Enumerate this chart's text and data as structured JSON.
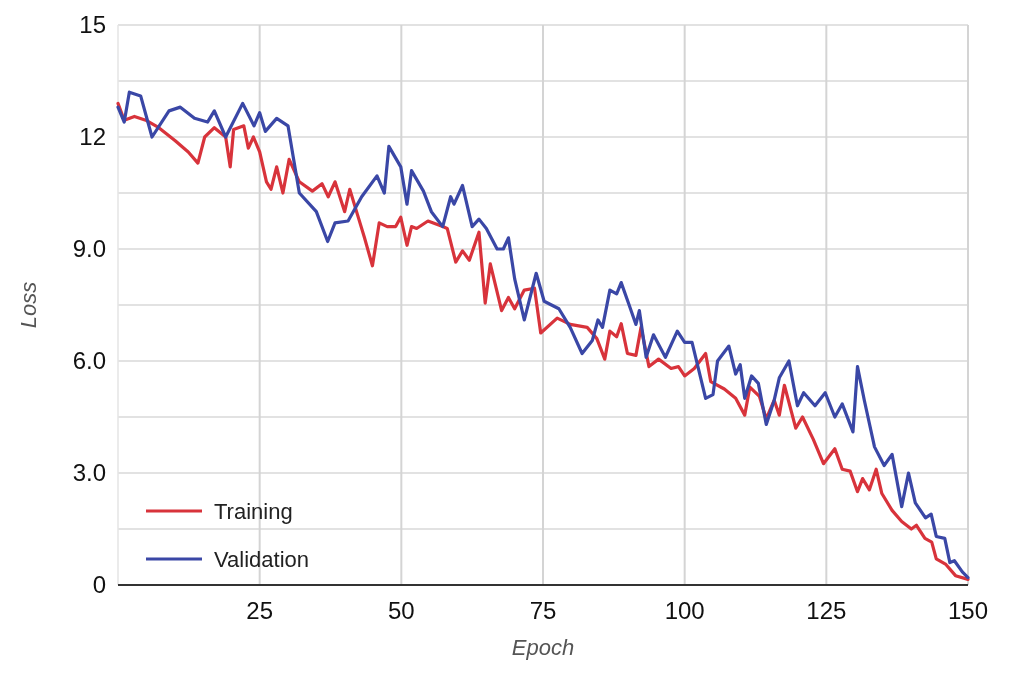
{
  "chart_data": {
    "type": "line",
    "xlabel": "Epoch",
    "ylabel": "Loss",
    "xlim": [
      0,
      150
    ],
    "xticks": [
      25,
      50,
      75,
      100,
      125,
      150
    ],
    "ylim": [
      0,
      15
    ],
    "yticks": [
      0,
      {
        "value": 1.5,
        "label": null
      },
      {
        "value": 3,
        "label": "3.0"
      },
      {
        "value": 4.5,
        "label": null
      },
      {
        "value": 6,
        "label": "6.0"
      },
      {
        "value": 7.5,
        "label": null
      },
      {
        "value": 9,
        "label": "9.0"
      },
      {
        "value": 10.5,
        "label": null
      },
      12,
      {
        "value": 13.5,
        "label": null
      },
      15
    ],
    "grid": true,
    "legend": "bottom left",
    "line_style": "solid",
    "series": [
      {
        "name": "Training",
        "color": "#d8333b",
        "x": [
          0,
          1.1,
          2.9,
          4.9,
          7.2,
          10.1,
          12.4,
          14.1,
          15.3,
          17,
          19,
          19.8,
          20.4,
          22.2,
          23,
          23.9,
          25,
          26.2,
          27,
          28,
          29.1,
          30.2,
          32,
          34.3,
          36,
          37.1,
          38.3,
          40,
          40.9,
          42.3,
          43.5,
          44.9,
          46.1,
          47.5,
          49,
          49.9,
          51,
          51.8,
          52.7,
          54.7,
          57.3,
          58.1,
          59.6,
          60.8,
          62,
          63.7,
          64.8,
          65.7,
          67.7,
          68.9,
          70,
          71.7,
          73.5,
          74.6,
          77.5,
          79.8,
          82.8,
          84.5,
          85.9,
          86.8,
          88,
          88.8,
          89.9,
          91.4,
          92.3,
          93.7,
          95.4,
          97.6,
          98.9,
          100,
          101.7,
          103.7,
          104.6,
          107,
          109,
          110.6,
          111.5,
          113.2,
          114.4,
          115.8,
          116.7,
          117.6,
          119.6,
          120.8,
          122.7,
          124.5,
          126.5,
          127.8,
          129.2,
          130.5,
          131.4,
          132.6,
          133.8,
          134.8,
          136.6,
          138.3,
          140,
          140.9,
          142.4,
          143.6,
          144.4,
          146.1,
          147.8,
          150
        ],
        "values": [
          12.9,
          12.45,
          12.55,
          12.45,
          12.25,
          11.9,
          11.6,
          11.3,
          12,
          12.25,
          12,
          11.2,
          12.2,
          12.3,
          11.7,
          12,
          11.6,
          10.8,
          10.6,
          11.2,
          10.5,
          11.4,
          10.8,
          10.55,
          10.75,
          10.4,
          10.8,
          10,
          10.6,
          9.9,
          9.3,
          8.55,
          9.7,
          9.6,
          9.6,
          9.85,
          9.1,
          9.6,
          9.55,
          9.75,
          9.6,
          9.55,
          8.65,
          8.95,
          8.7,
          9.45,
          7.55,
          8.6,
          7.35,
          7.7,
          7.4,
          7.9,
          7.95,
          6.75,
          7.15,
          6.98,
          6.9,
          6.6,
          6.05,
          6.8,
          6.65,
          7,
          6.2,
          6.15,
          6.9,
          5.85,
          6.05,
          5.8,
          5.85,
          5.6,
          5.8,
          6.2,
          5.45,
          5.25,
          5,
          4.55,
          5.3,
          5.05,
          4.45,
          4.95,
          4.55,
          5.35,
          4.2,
          4.5,
          3.9,
          3.25,
          3.65,
          3.1,
          3.05,
          2.5,
          2.85,
          2.55,
          3.1,
          2.45,
          2,
          1.7,
          1.5,
          1.6,
          1.25,
          1.15,
          0.7,
          0.55,
          0.25,
          0.15
        ]
      },
      {
        "name": "Validation",
        "color": "#3a47a6",
        "x": [
          0,
          1.1,
          2,
          4,
          6,
          9,
          11,
          13.5,
          15.8,
          17,
          19,
          22,
          24,
          25,
          26,
          28,
          30,
          31,
          32,
          35,
          37,
          38.3,
          40.6,
          43,
          45.7,
          47,
          47.8,
          49.9,
          51,
          51.8,
          53.9,
          55.3,
          57.3,
          58.7,
          59.3,
          60.8,
          62.5,
          63.7,
          65,
          66.9,
          68,
          68.9,
          70,
          71.7,
          73.8,
          75.2,
          77.8,
          79.8,
          81.9,
          83.7,
          84.7,
          85.5,
          86.8,
          88,
          88.8,
          90.2,
          91.4,
          92,
          93.2,
          94.5,
          96.6,
          98.7,
          100,
          101.3,
          103.7,
          105,
          105.8,
          107.8,
          109,
          109.8,
          110.6,
          111.8,
          113,
          114.4,
          115.8,
          116.7,
          118.4,
          119.9,
          121,
          123,
          124.8,
          126.5,
          127.8,
          129.7,
          130.5,
          131.7,
          133.5,
          135.2,
          136.6,
          138.3,
          139.5,
          140.7,
          142.5,
          143.5,
          144.4,
          145.9,
          146.8,
          147.6,
          149,
          150
        ],
        "values": [
          12.8,
          12.4,
          13.2,
          13.1,
          12,
          12.7,
          12.8,
          12.5,
          12.4,
          12.7,
          12,
          12.9,
          12.3,
          12.65,
          12.15,
          12.5,
          12.3,
          11.4,
          10.5,
          10,
          9.2,
          9.7,
          9.75,
          10.4,
          10.96,
          10.5,
          11.75,
          11.2,
          10.2,
          11.1,
          10.55,
          10,
          9.6,
          10.4,
          10.2,
          10.7,
          9.6,
          9.8,
          9.55,
          9,
          9,
          9.3,
          8.2,
          7.1,
          8.35,
          7.6,
          7.4,
          6.9,
          6.2,
          6.55,
          7.1,
          6.9,
          7.9,
          7.8,
          8.1,
          7.5,
          6.98,
          7.35,
          6.1,
          6.7,
          6.1,
          6.8,
          6.5,
          6.5,
          5,
          5.1,
          6,
          6.4,
          5.65,
          5.9,
          5,
          5.6,
          5.4,
          4.3,
          4.95,
          5.55,
          6,
          4.8,
          5.15,
          4.8,
          5.15,
          4.5,
          4.85,
          4.1,
          5.85,
          4.95,
          3.7,
          3.2,
          3.5,
          2.1,
          3,
          2.2,
          1.8,
          1.9,
          1.3,
          1.25,
          0.6,
          0.65,
          0.35,
          0.2
        ]
      }
    ]
  }
}
